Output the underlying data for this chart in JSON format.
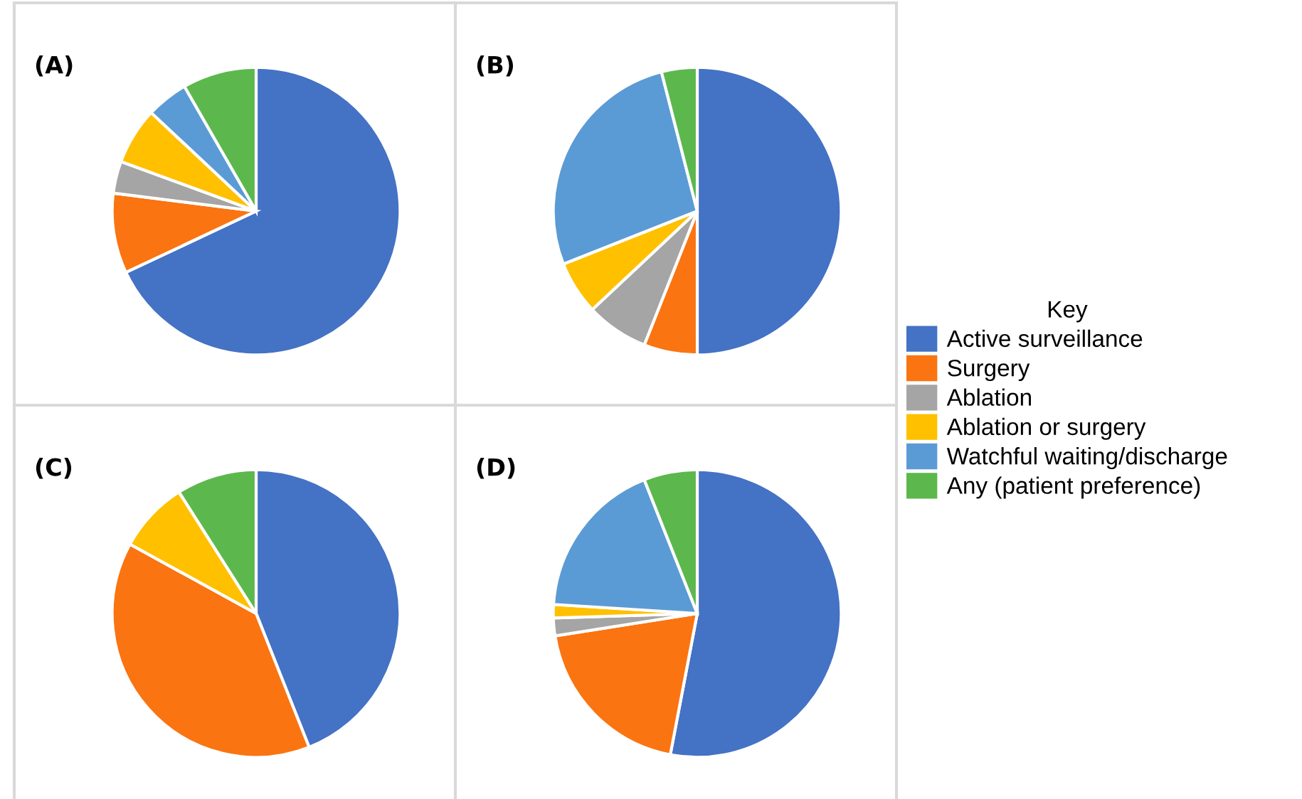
{
  "chart_data": [
    {
      "type": "pie",
      "title": "(A)",
      "categories": [
        "Active surveillance",
        "Surgery",
        "Ablation",
        "Ablation or surgery",
        "Watchful waiting/discharge",
        "Any (patient preference)"
      ],
      "values": [
        68,
        9,
        3.6,
        6.4,
        4.7,
        8.3
      ],
      "colors": [
        "#4472c4",
        "#fa7411",
        "#a5a5a5",
        "#ffc000",
        "#5b9bd5",
        "#5cb84c"
      ],
      "legend": "right",
      "legend_title": "Key"
    },
    {
      "type": "pie",
      "title": "(B)",
      "categories": [
        null,
        null,
        null,
        null,
        null,
        null
      ],
      "values": [
        50,
        6,
        7,
        6,
        27,
        4
      ],
      "colors": [
        "#4472c4",
        "#fa7411",
        "#a5a5a5",
        "#ffc000",
        "#5b9bd5",
        "#5cb84c"
      ]
    },
    {
      "type": "pie",
      "title": "(C)",
      "categories": [
        null,
        null,
        null,
        null,
        null,
        null
      ],
      "values": [
        44,
        39,
        0,
        8,
        0,
        9
      ],
      "colors": [
        "#4472c4",
        "#fa7411",
        "#a5a5a5",
        "#ffc000",
        "#5b9bd5",
        "#5cb84c"
      ]
    },
    {
      "type": "pie",
      "title": "(D)",
      "categories": [
        null,
        null,
        null,
        null,
        null,
        null
      ],
      "values": [
        53,
        19.5,
        2,
        1.5,
        18,
        6
      ],
      "colors": [
        "#4472c4",
        "#fa7411",
        "#a5a5a5",
        "#ffc000",
        "#5b9bd5",
        "#5cb84c"
      ]
    }
  ]
}
